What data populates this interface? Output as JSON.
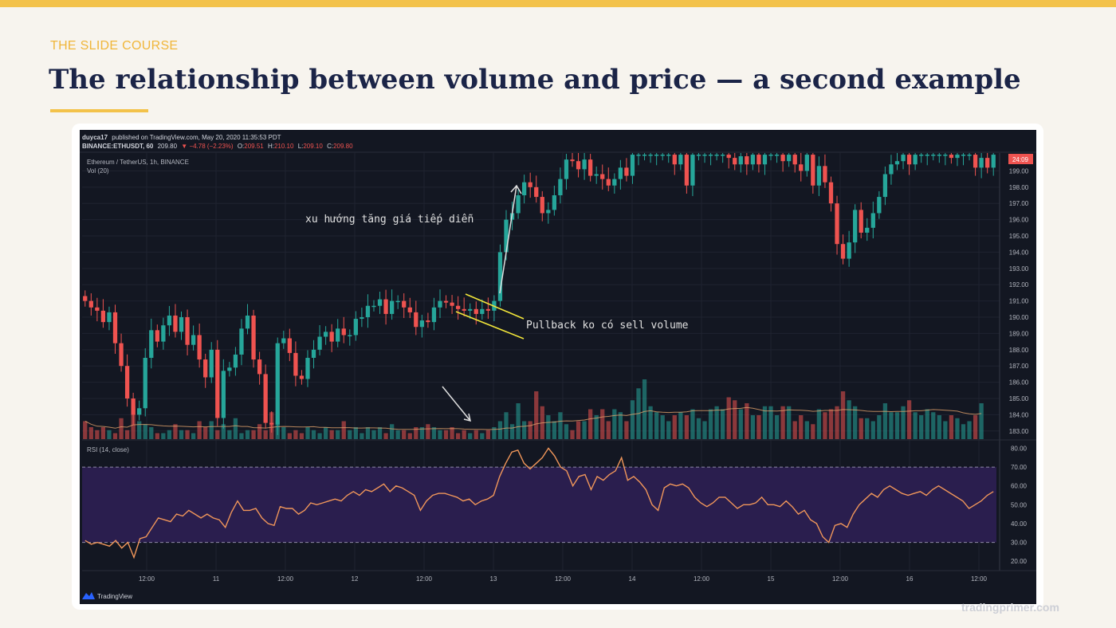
{
  "slide": {
    "kicker": "THE SLIDE COURSE",
    "title": "The relationship between volume and price — a second example",
    "source": "tradingprimer.com",
    "accent_color": "#f3c24a",
    "title_color": "#1b2447"
  },
  "chart_data": {
    "type": "candlestick",
    "header": {
      "publisher": "duyca17",
      "published": "published on TradingView.com, May 20, 2020 11:35:53 PDT",
      "symbol": "BINANCE:ETHUSDT, 60",
      "last": "209.80",
      "change": "−4.78 (−2.23%)",
      "open": "209.51",
      "high": "210.10",
      "low": "209.10",
      "close": "209.80"
    },
    "instrument": "Ethereum / TetherUS, 1h, BINANCE",
    "volume_label": "Vol (20)",
    "rsi_label": "RSI (14, close)",
    "brand": "TradingView",
    "price_badge": "24:09",
    "price_axis": {
      "range": [
        182.5,
        200.1
      ],
      "ticks": [
        "199.00",
        "198.00",
        "197.00",
        "196.00",
        "195.00",
        "194.00",
        "193.00",
        "192.00",
        "191.00",
        "190.00",
        "189.00",
        "188.00",
        "187.00",
        "186.00",
        "185.00",
        "184.00",
        "183.00"
      ]
    },
    "rsi_axis": {
      "range": [
        15,
        84
      ],
      "ticks": [
        "80.00",
        "70.00",
        "60.00",
        "50.00",
        "40.00",
        "30.00",
        "20.00"
      ],
      "overbought": 70,
      "oversold": 30
    },
    "time_axis": [
      "12:00",
      "11",
      "12:00",
      "12",
      "12:00",
      "13",
      "12:00",
      "14",
      "12:00",
      "15",
      "12:00",
      "16",
      "12:00"
    ],
    "annotations": {
      "trend": "xu hướng tăng giá tiếp diễn",
      "pullback": "Pullback ko có sell volume"
    },
    "colors": {
      "up": "#26a69a",
      "down": "#ef5350",
      "background": "#131722",
      "rsi_line": "#f0965a",
      "rsi_band": "#2a1e4e",
      "channel": "#f2e63a"
    },
    "closes": [
      191.0,
      190.6,
      190.4,
      189.7,
      190.3,
      188.4,
      187.0,
      185.0,
      184.0,
      184.4,
      187.5,
      189.2,
      188.5,
      189.5,
      190.1,
      189.1,
      190.0,
      188.3,
      188.9,
      187.4,
      186.3,
      188.0,
      183.8,
      186.7,
      186.9,
      187.7,
      189.3,
      190.1,
      187.4,
      186.5,
      183.5,
      183.4,
      188.4,
      188.7,
      187.8,
      186.4,
      186.2,
      187.5,
      188.0,
      188.8,
      189.1,
      188.5,
      189.3,
      188.9,
      188.9,
      189.9,
      190.0,
      190.7,
      190.7,
      191.1,
      190.2,
      191.0,
      191.0,
      190.6,
      190.3,
      189.4,
      189.8,
      189.7,
      190.6,
      191.0,
      190.9,
      190.7,
      190.5,
      190.4,
      190.5,
      190.2,
      190.5,
      190.4,
      191.0,
      194.0,
      196.0,
      196.4,
      197.5,
      198.3,
      198.0,
      197.4,
      196.4,
      196.6,
      197.5,
      198.5,
      199.7,
      199.6,
      199.1,
      199.7,
      198.7,
      198.8,
      198.5,
      198.1,
      198.5,
      199.2,
      198.7,
      200.0,
      200.0,
      200.0,
      200.0,
      200.0,
      200.0,
      200.0,
      199.4,
      200.0,
      198.1,
      200.0,
      200.0,
      200.0,
      200.0,
      200.0,
      200.0,
      199.8,
      199.4,
      199.9,
      199.4,
      200.0,
      199.4,
      200.0,
      200.0,
      200.0,
      199.6,
      200.0,
      199.4,
      199.0,
      200.0,
      198.1,
      199.3,
      198.3,
      197.0,
      194.5,
      193.6,
      194.6,
      196.6,
      195.2,
      195.5,
      196.4,
      197.4,
      198.8,
      199.4,
      199.6,
      200.0,
      199.4,
      200.0,
      200.0,
      200.0,
      200.0,
      200.0,
      200.0,
      199.8,
      200.0,
      200.0,
      200.0,
      199.2,
      199.8,
      199.2,
      200.0
    ],
    "volumes": [
      0.6,
      0.4,
      0.3,
      0.4,
      0.3,
      0.2,
      0.7,
      0.3,
      1.1,
      0.6,
      0.5,
      0.4,
      0.2,
      0.2,
      0.3,
      0.5,
      0.3,
      0.3,
      0.2,
      0.6,
      0.4,
      0.6,
      0.3,
      0.5,
      0.3,
      0.7,
      0.2,
      0.3,
      0.3,
      0.5,
      0.3,
      0.9,
      0.6,
      0.4,
      0.2,
      0.3,
      0.2,
      0.4,
      0.3,
      0.2,
      0.4,
      0.3,
      0.3,
      0.6,
      0.3,
      0.4,
      0.2,
      0.4,
      0.3,
      0.4,
      0.2,
      0.5,
      0.3,
      0.3,
      0.2,
      0.4,
      0.4,
      0.5,
      0.4,
      0.3,
      0.3,
      0.4,
      0.2,
      0.3,
      0.2,
      0.3,
      0.2,
      0.3,
      0.4,
      0.6,
      0.9,
      0.5,
      1.2,
      0.6,
      0.6,
      1.6,
      1.1,
      0.8,
      0.6,
      0.9,
      0.5,
      0.3,
      0.6,
      0.6,
      1.0,
      0.8,
      1.0,
      0.6,
      1.0,
      0.9,
      0.6,
      1.3,
      1.7,
      2.0,
      1.1,
      0.9,
      0.8,
      0.6,
      0.8,
      0.9,
      0.8,
      1.0,
      0.7,
      0.6,
      1.0,
      1.1,
      1.0,
      1.4,
      1.3,
      1.0,
      1.2,
      0.8,
      0.8,
      1.1,
      1.1,
      0.8,
      1.1,
      1.1,
      0.6,
      0.8,
      0.6,
      0.5,
      1.0,
      0.9,
      1.0,
      1.1,
      1.6,
      1.3,
      1.1,
      0.7,
      0.7,
      0.6,
      0.8,
      1.2,
      0.9,
      0.9,
      1.1,
      1.3,
      0.9,
      0.8,
      1.0,
      0.9,
      0.8,
      0.6,
      0.8,
      0.7,
      0.5,
      0.6,
      0.8,
      1.2
    ],
    "rsi": [
      31,
      29,
      30,
      29,
      28,
      31,
      27,
      30,
      22,
      32,
      33,
      38,
      43,
      42,
      41,
      45,
      44,
      47,
      45,
      43,
      45,
      43,
      42,
      38,
      46,
      52,
      47,
      47,
      48,
      43,
      40,
      39,
      49,
      48,
      48,
      45,
      47,
      51,
      50,
      51,
      52,
      53,
      52,
      55,
      57,
      55,
      58,
      57,
      59,
      61,
      57,
      60,
      59,
      57,
      55,
      47,
      52,
      55,
      56,
      56,
      55,
      54,
      52,
      53,
      50,
      52,
      53,
      55,
      65,
      72,
      78,
      79,
      72,
      69,
      72,
      75,
      80,
      76,
      70,
      68,
      60,
      65,
      66,
      58,
      65,
      63,
      66,
      68,
      75,
      63,
      65,
      62,
      58,
      50,
      47,
      59,
      61,
      60,
      61,
      59,
      54,
      51,
      49,
      51,
      54,
      54,
      51,
      48,
      50,
      50,
      51,
      54,
      50,
      50,
      49,
      52,
      49,
      45,
      47,
      42,
      40,
      33,
      30,
      39,
      40,
      38,
      45,
      50,
      53,
      56,
      54,
      58,
      60,
      58,
      56,
      55,
      56,
      57,
      55,
      58,
      60,
      58,
      56,
      54,
      52,
      48,
      50,
      52,
      55,
      57
    ]
  }
}
